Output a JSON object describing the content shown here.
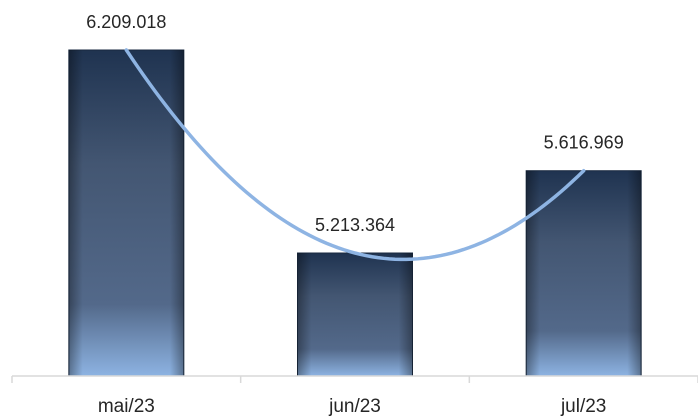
{
  "chart_data": {
    "type": "bar",
    "categories": [
      "mai/23",
      "jun/23",
      "jul/23"
    ],
    "values": [
      6209018,
      5213364,
      5616969
    ],
    "value_labels": [
      "6.209.018",
      "5.213.364",
      "5.616.969"
    ],
    "title": "",
    "xlabel": "",
    "ylabel": "",
    "ylim": [
      4000000,
      6600000
    ],
    "grid": false,
    "legend": "none",
    "trendline": {
      "type": "polynomial",
      "color": "#8EB4E3"
    },
    "colors": {
      "bar_top": "#1F3350",
      "bar_mid": "#4A5D78",
      "bar_bottom": "#8DB3E2",
      "trend": "#8EB4E3",
      "axis": "#D9D9D9",
      "text": "#262626"
    }
  }
}
